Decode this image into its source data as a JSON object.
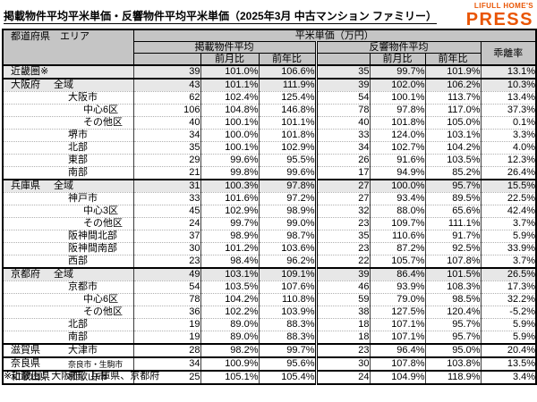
{
  "title": "掲載物件平均平米単価・反響物件平均平米単価（2025年3月 中古マンション ファミリー）",
  "logo": {
    "brand": "LIFULL HOME'S",
    "product": "PRESS",
    "color": "#e95504"
  },
  "footnote": "※近畿圏：大阪府、兵庫県、京都府",
  "chart_data": {
    "type": "table",
    "title": "掲載物件平均平米単価・反響物件平均平米単価（2025年3月 中古マンション ファミリー）",
    "header": {
      "pref_area": "都道府県　エリア",
      "unit_group": "平米単価（万円）",
      "listed_group": "掲載物件平均",
      "inquiry_group": "反響物件平均",
      "mom": "前月比",
      "yoy": "前年比",
      "deviation": "乖離率"
    },
    "value_columns": [
      "掲載物件平均",
      "掲載前月比",
      "掲載前年比",
      "反響物件平均",
      "反響前月比",
      "反響前年比",
      "乖離率"
    ],
    "rows": [
      {
        "pref": "近畿圏※",
        "area": "",
        "indent": 0,
        "shaded": true,
        "group_start": true,
        "values": [
          "39",
          "101.0%",
          "106.6%",
          "35",
          "99.7%",
          "101.9%",
          "13.1%"
        ]
      },
      {
        "pref": "大阪府",
        "area": "全域",
        "indent": 1,
        "shaded": true,
        "group_start": true,
        "values": [
          "43",
          "101.1%",
          "111.9%",
          "39",
          "102.0%",
          "106.2%",
          "10.3%"
        ]
      },
      {
        "pref": "",
        "area": "大阪市",
        "indent": 2,
        "shaded": false,
        "group_start": false,
        "values": [
          "62",
          "102.4%",
          "125.4%",
          "54",
          "100.1%",
          "113.7%",
          "13.4%"
        ]
      },
      {
        "pref": "",
        "area": "中心6区",
        "indent": 3,
        "shaded": false,
        "group_start": false,
        "values": [
          "106",
          "104.8%",
          "146.8%",
          "78",
          "97.8%",
          "117.0%",
          "37.3%"
        ]
      },
      {
        "pref": "",
        "area": "その他区",
        "indent": 3,
        "shaded": false,
        "group_start": false,
        "values": [
          "40",
          "100.1%",
          "101.1%",
          "40",
          "101.8%",
          "105.0%",
          "0.1%"
        ]
      },
      {
        "pref": "",
        "area": "堺市",
        "indent": 2,
        "shaded": false,
        "group_start": false,
        "values": [
          "34",
          "100.0%",
          "101.8%",
          "33",
          "124.0%",
          "103.1%",
          "3.3%"
        ]
      },
      {
        "pref": "",
        "area": "北部",
        "indent": 2,
        "shaded": false,
        "group_start": false,
        "values": [
          "35",
          "100.1%",
          "102.9%",
          "34",
          "102.7%",
          "104.2%",
          "4.0%"
        ]
      },
      {
        "pref": "",
        "area": "東部",
        "indent": 2,
        "shaded": false,
        "group_start": false,
        "values": [
          "29",
          "99.6%",
          "95.5%",
          "26",
          "91.6%",
          "103.5%",
          "12.3%"
        ]
      },
      {
        "pref": "",
        "area": "南部",
        "indent": 2,
        "shaded": false,
        "group_start": false,
        "values": [
          "21",
          "99.8%",
          "99.6%",
          "17",
          "94.9%",
          "85.2%",
          "26.4%"
        ]
      },
      {
        "pref": "兵庫県",
        "area": "全域",
        "indent": 1,
        "shaded": true,
        "group_start": true,
        "values": [
          "31",
          "100.3%",
          "97.8%",
          "27",
          "100.0%",
          "95.7%",
          "15.5%"
        ]
      },
      {
        "pref": "",
        "area": "神戸市",
        "indent": 2,
        "shaded": false,
        "group_start": false,
        "values": [
          "33",
          "101.6%",
          "97.2%",
          "27",
          "93.4%",
          "89.5%",
          "22.5%"
        ]
      },
      {
        "pref": "",
        "area": "中心3区",
        "indent": 3,
        "shaded": false,
        "group_start": false,
        "values": [
          "45",
          "102.9%",
          "98.9%",
          "32",
          "88.0%",
          "65.6%",
          "42.4%"
        ]
      },
      {
        "pref": "",
        "area": "その他区",
        "indent": 3,
        "shaded": false,
        "group_start": false,
        "values": [
          "24",
          "99.7%",
          "99.0%",
          "23",
          "109.7%",
          "111.1%",
          "3.7%"
        ]
      },
      {
        "pref": "",
        "area": "阪神間北部",
        "indent": 2,
        "shaded": false,
        "group_start": false,
        "values": [
          "37",
          "98.9%",
          "98.7%",
          "35",
          "110.6%",
          "91.7%",
          "5.9%"
        ]
      },
      {
        "pref": "",
        "area": "阪神間南部",
        "indent": 2,
        "shaded": false,
        "group_start": false,
        "values": [
          "30",
          "101.2%",
          "103.6%",
          "23",
          "87.2%",
          "92.5%",
          "33.9%"
        ]
      },
      {
        "pref": "",
        "area": "西部",
        "indent": 2,
        "shaded": false,
        "group_start": false,
        "values": [
          "23",
          "98.4%",
          "96.2%",
          "22",
          "105.7%",
          "107.8%",
          "3.7%"
        ]
      },
      {
        "pref": "京都府",
        "area": "全域",
        "indent": 1,
        "shaded": true,
        "group_start": true,
        "values": [
          "49",
          "103.1%",
          "109.1%",
          "39",
          "86.4%",
          "101.5%",
          "26.5%"
        ]
      },
      {
        "pref": "",
        "area": "京都市",
        "indent": 2,
        "shaded": false,
        "group_start": false,
        "values": [
          "54",
          "103.5%",
          "107.6%",
          "46",
          "93.9%",
          "108.3%",
          "17.3%"
        ]
      },
      {
        "pref": "",
        "area": "中心6区",
        "indent": 3,
        "shaded": false,
        "group_start": false,
        "values": [
          "78",
          "104.2%",
          "110.8%",
          "59",
          "79.0%",
          "98.5%",
          "32.2%"
        ]
      },
      {
        "pref": "",
        "area": "その他区",
        "indent": 3,
        "shaded": false,
        "group_start": false,
        "values": [
          "36",
          "102.2%",
          "103.9%",
          "38",
          "127.5%",
          "120.4%",
          "-5.2%"
        ]
      },
      {
        "pref": "",
        "area": "北部",
        "indent": 2,
        "shaded": false,
        "group_start": false,
        "values": [
          "19",
          "89.0%",
          "88.3%",
          "18",
          "107.1%",
          "95.7%",
          "5.9%"
        ]
      },
      {
        "pref": "",
        "area": "南部",
        "indent": 2,
        "shaded": false,
        "group_start": false,
        "values": [
          "19",
          "89.0%",
          "88.3%",
          "18",
          "107.1%",
          "95.7%",
          "5.9%"
        ]
      },
      {
        "pref": "滋賀県",
        "area": "大津市",
        "indent": 2,
        "shaded": false,
        "group_start": true,
        "values": [
          "28",
          "98.2%",
          "99.7%",
          "23",
          "96.4%",
          "95.0%",
          "20.4%"
        ]
      },
      {
        "pref": "奈良県",
        "area": "奈良市・生駒市",
        "indent": 2,
        "shaded": false,
        "group_start": true,
        "small": true,
        "values": [
          "34",
          "100.9%",
          "95.6%",
          "30",
          "107.8%",
          "103.8%",
          "13.5%"
        ]
      },
      {
        "pref": "和歌山県",
        "area": "和歌山市",
        "indent": 2,
        "shaded": false,
        "group_start": true,
        "values": [
          "25",
          "105.1%",
          "105.4%",
          "24",
          "104.9%",
          "118.9%",
          "3.4%"
        ]
      }
    ]
  }
}
